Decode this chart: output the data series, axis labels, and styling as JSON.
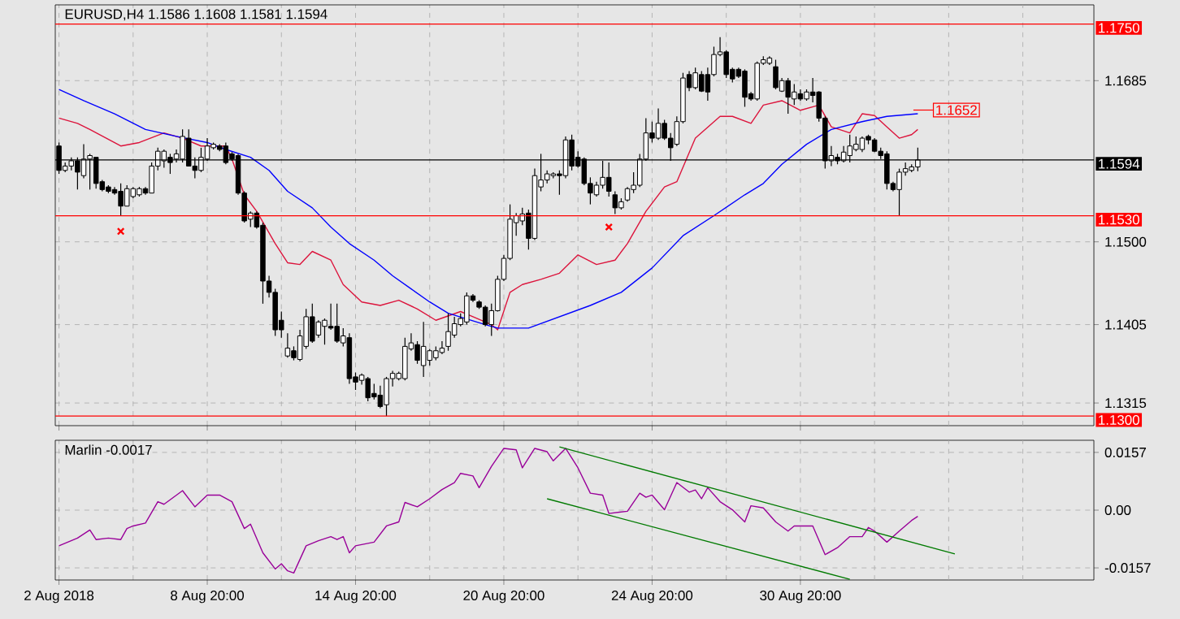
{
  "chart_data": [
    {
      "type": "candlestick",
      "title": "EURUSD,H4  1.1586 1.1608 1.1581 1.1594",
      "categories": [
        null,
        null,
        null,
        null,
        null,
        null,
        null,
        null,
        null,
        null,
        null,
        null,
        null,
        null,
        null,
        null,
        null,
        null,
        null,
        null,
        null,
        null,
        null,
        null,
        null,
        null,
        null,
        null,
        null,
        null,
        null,
        null,
        null,
        null,
        null,
        null,
        null,
        null,
        null,
        null,
        null,
        null,
        null,
        null,
        null,
        null,
        null,
        null,
        null,
        null,
        null,
        null,
        null,
        null,
        null,
        null,
        null,
        null,
        null,
        null,
        null,
        null,
        null,
        null,
        null,
        null,
        null,
        null,
        null,
        null,
        null,
        null,
        null,
        null,
        null,
        null,
        null,
        null,
        null,
        null,
        null,
        null,
        null,
        null,
        null,
        null,
        null,
        null,
        null,
        null,
        null,
        null,
        null,
        null,
        null,
        null,
        null,
        null,
        null,
        null,
        null,
        null,
        null,
        null,
        null,
        null,
        null,
        null,
        null,
        null,
        null,
        null,
        null,
        null,
        null,
        null,
        null,
        null,
        null,
        null,
        null,
        null,
        null,
        null,
        null,
        null,
        null,
        null,
        null,
        null,
        null,
        null,
        null,
        null,
        null,
        null,
        null,
        null,
        null,
        null,
        null,
        null,
        null,
        null,
        null,
        null,
        null,
        null,
        null,
        null,
        null,
        null,
        null,
        null,
        null,
        null,
        null,
        null,
        null,
        null,
        null,
        null,
        null,
        null,
        null,
        null,
        null,
        null
      ],
      "ohlc": [
        [
          1.161,
          1.1614,
          1.1578,
          1.1582
        ],
        [
          1.1582,
          1.1591,
          1.158,
          1.1587
        ],
        [
          1.1587,
          1.1597,
          1.1582,
          1.1593
        ],
        [
          1.1593,
          1.1597,
          1.156,
          1.158
        ],
        [
          1.1576,
          1.1612,
          1.1573,
          1.1595
        ],
        [
          1.1595,
          1.1601,
          1.156,
          1.1599
        ],
        [
          1.1597,
          1.1597,
          1.1561,
          1.1567
        ],
        [
          1.1569,
          1.1571,
          1.1558,
          1.156
        ],
        [
          1.1563,
          1.1565,
          1.1556,
          1.1558
        ],
        [
          1.156,
          1.1563,
          1.1554,
          1.1556
        ],
        [
          1.1558,
          1.1567,
          1.153,
          1.1541
        ],
        [
          1.1541,
          1.1565,
          1.1541,
          1.1561
        ],
        [
          1.1552,
          1.1563,
          1.155,
          1.1561
        ],
        [
          1.1554,
          1.1563,
          1.1552,
          1.1561
        ],
        [
          1.1561,
          1.1563,
          1.1554,
          1.1556
        ],
        [
          1.1556,
          1.1591,
          1.1556,
          1.1587
        ],
        [
          1.1587,
          1.1608,
          1.1582,
          1.1604
        ],
        [
          1.1593,
          1.1606,
          1.1585,
          1.1604
        ],
        [
          1.1597,
          1.1601,
          1.1578,
          1.1591
        ],
        [
          1.1595,
          1.1606,
          1.1591,
          1.1601
        ],
        [
          1.1595,
          1.1629,
          1.1591,
          1.1621
        ],
        [
          1.1619,
          1.1629,
          1.1587,
          1.1587
        ],
        [
          1.1587,
          1.1597,
          1.1573,
          1.1582
        ],
        [
          1.1582,
          1.1608,
          1.158,
          1.1597
        ],
        [
          1.1595,
          1.1619,
          1.1593,
          1.161
        ],
        [
          1.1608,
          1.1614,
          1.1606,
          1.1612
        ],
        [
          1.161,
          1.1612,
          1.1604,
          1.1606
        ],
        [
          1.161,
          1.1614,
          1.1589,
          1.1591
        ],
        [
          1.1601,
          1.1603,
          1.1593,
          1.1595
        ],
        [
          1.1599,
          1.1601,
          1.1554,
          1.1556
        ],
        [
          1.1556,
          1.1558,
          1.1522,
          1.1524
        ],
        [
          1.1526,
          1.1535,
          1.1517,
          1.1533
        ],
        [
          1.1533,
          1.1535,
          1.1515,
          1.1517
        ],
        [
          1.1519,
          1.1522,
          1.1429,
          1.1455
        ],
        [
          1.1455,
          1.1461,
          1.1436,
          1.1442
        ],
        [
          1.1442,
          1.1446,
          1.1392,
          1.1399
        ],
        [
          1.141,
          1.142,
          1.139,
          1.1399
        ],
        [
          1.1369,
          1.1395,
          1.1367,
          1.1378
        ],
        [
          1.1375,
          1.138,
          1.1364,
          1.1367
        ],
        [
          1.1365,
          1.1399,
          1.1363,
          1.1392
        ],
        [
          1.138,
          1.1423,
          1.1377,
          1.1414
        ],
        [
          1.1414,
          1.1429,
          1.1384,
          1.1386
        ],
        [
          1.1393,
          1.141,
          1.139,
          1.1408
        ],
        [
          1.1403,
          1.1412,
          1.1382,
          1.141
        ],
        [
          1.1403,
          1.1429,
          1.1399,
          1.1401
        ],
        [
          1.1403,
          1.1429,
          1.1384,
          1.1386
        ],
        [
          1.1384,
          1.1401,
          1.138,
          1.1392
        ],
        [
          1.139,
          1.1395,
          1.1337,
          1.1343
        ],
        [
          1.1345,
          1.135,
          1.133,
          1.1339
        ],
        [
          1.1341,
          1.1349,
          1.1336,
          1.1347
        ],
        [
          1.1343,
          1.1345,
          1.1317,
          1.1321
        ],
        [
          1.1326,
          1.1337,
          1.1319,
          1.1322
        ],
        [
          1.1324,
          1.1335,
          1.1309,
          1.1311
        ],
        [
          1.1313,
          1.1345,
          1.13,
          1.1343
        ],
        [
          1.1343,
          1.1352,
          1.1334,
          1.1349
        ],
        [
          1.1343,
          1.1351,
          1.1341,
          1.1349
        ],
        [
          1.1343,
          1.139,
          1.1341,
          1.138
        ],
        [
          1.1377,
          1.1395,
          1.1375,
          1.1384
        ],
        [
          1.1382,
          1.1386,
          1.136,
          1.1364
        ],
        [
          1.1358,
          1.1408,
          1.1345,
          1.138
        ],
        [
          1.1364,
          1.1377,
          1.1358,
          1.1375
        ],
        [
          1.1367,
          1.138,
          1.1364,
          1.1375
        ],
        [
          1.1373,
          1.1386,
          1.1371,
          1.1378
        ],
        [
          1.138,
          1.1418,
          1.1375,
          1.1397
        ],
        [
          1.1393,
          1.1414,
          1.139,
          1.1406
        ],
        [
          1.1405,
          1.1418,
          1.1403,
          1.1412
        ],
        [
          1.1408,
          1.1442,
          1.1405,
          1.1438
        ],
        [
          1.1438,
          1.144,
          1.1431,
          1.1433
        ],
        [
          1.1431,
          1.1433,
          1.1423,
          1.1425
        ],
        [
          1.1425,
          1.1427,
          1.1403,
          1.1405
        ],
        [
          1.1405,
          1.1429,
          1.1392,
          1.1421
        ],
        [
          1.1421,
          1.1461,
          1.142,
          1.1457
        ],
        [
          1.1457,
          1.1485,
          1.1455,
          1.1481
        ],
        [
          1.1481,
          1.1543,
          1.1479,
          1.1526
        ],
        [
          1.1522,
          1.1533,
          1.1507,
          1.153
        ],
        [
          1.1524,
          1.1539,
          1.1519,
          1.1532
        ],
        [
          1.1533,
          1.1537,
          1.1491,
          1.1504
        ],
        [
          1.1504,
          1.1584,
          1.1502,
          1.1576
        ],
        [
          1.1563,
          1.1601,
          1.1558,
          1.1571
        ],
        [
          1.1571,
          1.1582,
          1.1567,
          1.1578
        ],
        [
          1.1576,
          1.158,
          1.1573,
          1.1578
        ],
        [
          1.1578,
          1.1582,
          1.1554,
          1.1576
        ],
        [
          1.1576,
          1.1621,
          1.1573,
          1.1617
        ],
        [
          1.1617,
          1.1623,
          1.1582,
          1.1587
        ],
        [
          1.1597,
          1.1604,
          1.1585,
          1.1587
        ],
        [
          1.1595,
          1.1597,
          1.1565,
          1.1567
        ],
        [
          1.1567,
          1.1574,
          1.1543,
          1.1556
        ],
        [
          1.1554,
          1.1569,
          1.1552,
          1.1565
        ],
        [
          1.1565,
          1.1593,
          1.1561,
          1.1574
        ],
        [
          1.1574,
          1.1591,
          1.1552,
          1.1558
        ],
        [
          1.1554,
          1.1558,
          1.1532,
          1.1539
        ],
        [
          1.1539,
          1.155,
          1.1537,
          1.1546
        ],
        [
          1.1548,
          1.1563,
          1.1546,
          1.1561
        ],
        [
          1.156,
          1.158,
          1.1556,
          1.1565
        ],
        [
          1.1565,
          1.1601,
          1.1563,
          1.1595
        ],
        [
          1.1595,
          1.1642,
          1.1593,
          1.1625
        ],
        [
          1.1625,
          1.1638,
          1.1614,
          1.1619
        ],
        [
          1.1619,
          1.1653,
          1.1617,
          1.1636
        ],
        [
          1.1636,
          1.164,
          1.1617,
          1.1619
        ],
        [
          1.1619,
          1.1625,
          1.1593,
          1.1608
        ],
        [
          1.1612,
          1.1644,
          1.161,
          1.1638
        ],
        [
          1.1638,
          1.1694,
          1.1636,
          1.1688
        ],
        [
          1.1692,
          1.1696,
          1.1673,
          1.1677
        ],
        [
          1.1677,
          1.17,
          1.1675,
          1.1694
        ],
        [
          1.1692,
          1.1696,
          1.1672,
          1.1673
        ],
        [
          1.1692,
          1.17,
          1.1662,
          1.1672
        ],
        [
          1.1692,
          1.1724,
          1.169,
          1.1715
        ],
        [
          1.1715,
          1.1735,
          1.1713,
          1.1718
        ],
        [
          1.1718,
          1.172,
          1.1688,
          1.1692
        ],
        [
          1.1698,
          1.17,
          1.1683,
          1.1687
        ],
        [
          1.1698,
          1.17,
          1.1688,
          1.169
        ],
        [
          1.1696,
          1.1698,
          1.1655,
          1.1666
        ],
        [
          1.167,
          1.1672,
          1.1662,
          1.1664
        ],
        [
          1.1664,
          1.1707,
          1.1662,
          1.1705
        ],
        [
          1.1705,
          1.1713,
          1.1703,
          1.1709
        ],
        [
          1.1705,
          1.1713,
          1.1703,
          1.1711
        ],
        [
          1.1701,
          1.1709,
          1.1675,
          1.1677
        ],
        [
          1.1673,
          1.1688,
          1.1672,
          1.1685
        ],
        [
          1.1685,
          1.1688,
          1.1647,
          1.1666
        ],
        [
          1.1664,
          1.1681,
          1.1657,
          1.1672
        ],
        [
          1.167,
          1.1675,
          1.1662,
          1.1664
        ],
        [
          1.1664,
          1.1675,
          1.1662,
          1.1672
        ],
        [
          1.1672,
          1.1688,
          1.166,
          1.1668
        ],
        [
          1.1672,
          1.1673,
          1.1638,
          1.1642
        ],
        [
          1.1642,
          1.1644,
          1.1584,
          1.1593
        ],
        [
          1.1593,
          1.161,
          1.1587,
          1.1599
        ],
        [
          1.1597,
          1.1601,
          1.1589,
          1.1593
        ],
        [
          1.1593,
          1.161,
          1.1591,
          1.1603
        ],
        [
          1.1599,
          1.1623,
          1.1591,
          1.161
        ],
        [
          1.1606,
          1.1621,
          1.1604,
          1.1612
        ],
        [
          1.1606,
          1.1621,
          1.1603,
          1.1619
        ],
        [
          1.1621,
          1.1623,
          1.1612,
          1.1617
        ],
        [
          1.1617,
          1.1619,
          1.1603,
          1.1604
        ],
        [
          1.1604,
          1.1608,
          1.1595,
          1.1599
        ],
        [
          1.1601,
          1.1604,
          1.156,
          1.1567
        ],
        [
          1.1567,
          1.1569,
          1.1558,
          1.156
        ],
        [
          1.156,
          1.1584,
          1.153,
          1.158
        ],
        [
          1.158,
          1.1591,
          1.1576,
          1.1584
        ],
        [
          1.1582,
          1.1589,
          1.158,
          1.1586
        ],
        [
          1.1586,
          1.1608,
          1.1581,
          1.1594
        ],
        null,
        null,
        null,
        null,
        null,
        null,
        null,
        null,
        null,
        null,
        null,
        null,
        null,
        null,
        null,
        null,
        null,
        null,
        null,
        null,
        null,
        null,
        null,
        null,
        null,
        null,
        null,
        null
      ],
      "series": [
        {
          "type": "line",
          "color": "#dc143c",
          "values": [
            1.1642,
            null,
            null,
            1.1636,
            null,
            1.1629,
            null,
            null,
            null,
            null,
            1.161,
            null,
            null,
            1.1614,
            null,
            null,
            null,
            1.1625,
            null,
            null,
            1.1619,
            null,
            null,
            1.161,
            null,
            null,
            null,
            1.161,
            1.1595,
            null,
            1.1554,
            null,
            1.1535,
            null,
            null,
            1.1498,
            null,
            1.1476,
            null,
            1.1474,
            null,
            1.1489,
            null,
            null,
            1.1479,
            null,
            1.1451,
            null,
            null,
            1.1431,
            null,
            null,
            1.1427,
            null,
            null,
            1.1433,
            null,
            null,
            1.1423,
            null,
            null,
            1.141,
            null,
            null,
            null,
            1.142,
            null,
            1.1414,
            null,
            null,
            1.1405,
            1.1399,
            null,
            1.1442,
            null,
            1.1451,
            null,
            null,
            1.1457,
            null,
            null,
            1.1464,
            null,
            null,
            1.1485,
            null,
            null,
            1.1474,
            null,
            null,
            1.1479,
            null,
            1.1498,
            null,
            null,
            1.1535,
            null,
            null,
            1.1563,
            null,
            1.1569,
            null,
            null,
            1.1619,
            null,
            null,
            null,
            1.1644,
            null,
            1.1644,
            null,
            null,
            1.1636,
            null,
            1.1657,
            null,
            null,
            1.1662,
            null,
            null,
            1.1651,
            null,
            null,
            1.1657,
            null,
            1.1632,
            null,
            null,
            1.1625,
            null,
            1.1647,
            null,
            1.1645,
            null,
            1.1632,
            null,
            1.1619,
            null,
            1.1623,
            1.1629,
            null,
            null,
            null,
            null,
            null,
            null,
            null,
            null,
            null,
            null,
            null,
            null,
            null,
            null,
            null,
            null,
            null,
            null,
            null,
            null,
            null,
            null,
            null,
            null,
            null,
            null,
            null,
            null
          ]
        },
        {
          "type": "line",
          "color": "#0000ff",
          "values": [
            1.1675,
            null,
            null,
            null,
            1.1662,
            null,
            null,
            null,
            null,
            1.1647,
            null,
            null,
            null,
            null,
            1.1629,
            null,
            null,
            null,
            null,
            1.1621,
            null,
            null,
            null,
            null,
            1.1614,
            null,
            null,
            1.1606,
            null,
            null,
            null,
            1.1597,
            null,
            null,
            1.1582,
            null,
            null,
            1.1558,
            null,
            null,
            null,
            1.1539,
            null,
            null,
            1.1517,
            null,
            null,
            1.1498,
            null,
            null,
            null,
            1.1479,
            null,
            null,
            1.1461,
            null,
            null,
            1.1446,
            null,
            null,
            1.1431,
            null,
            null,
            1.1418,
            null,
            null,
            null,
            null,
            null,
            1.1405,
            null,
            1.1401,
            null,
            null,
            null,
            null,
            1.1401,
            null,
            null,
            null,
            null,
            1.1414,
            null,
            null,
            null,
            null,
            1.1427,
            null,
            null,
            null,
            null,
            1.1442,
            null,
            null,
            null,
            null,
            1.147,
            null,
            null,
            null,
            null,
            1.1507,
            null,
            null,
            null,
            null,
            1.153,
            null,
            null,
            null,
            null,
            1.1554,
            null,
            null,
            1.1567,
            null,
            null,
            1.1589,
            null,
            null,
            null,
            1.1612,
            null,
            null,
            null,
            1.1629,
            null,
            null,
            null,
            null,
            1.1638,
            null,
            null,
            null,
            1.1644,
            null,
            null,
            null,
            null,
            1.1647,
            null,
            null,
            null,
            null,
            null,
            null,
            null,
            null,
            null,
            null,
            null,
            null,
            null,
            null,
            null,
            null,
            null,
            null,
            null,
            null,
            null,
            null,
            null,
            null,
            null,
            null,
            null,
            null
          ]
        },
        {
          "type": "scatter",
          "color": "#ff0000",
          "marker": "cross",
          "values": [
            null,
            null,
            null,
            null,
            null,
            null,
            null,
            null,
            null,
            null,
            1.1512,
            null,
            null,
            null,
            null,
            null,
            null,
            null,
            null,
            null,
            null,
            null,
            null,
            null,
            null,
            null,
            null,
            null,
            null,
            null,
            null,
            null,
            null,
            null,
            null,
            null,
            null,
            null,
            null,
            null,
            null,
            null,
            null,
            null,
            null,
            null,
            null,
            null,
            null,
            null,
            null,
            null,
            null,
            null,
            null,
            null,
            null,
            null,
            null,
            null,
            null,
            null,
            null,
            null,
            null,
            null,
            null,
            null,
            null,
            null,
            null,
            null,
            null,
            null,
            null,
            null,
            null,
            null,
            null,
            null,
            null,
            null,
            null,
            null,
            null,
            null,
            null,
            null,
            null,
            1.1517,
            null,
            null,
            null,
            null,
            null,
            null,
            null,
            null,
            null,
            null,
            null,
            null,
            null,
            null,
            null,
            null,
            null,
            null,
            null,
            null,
            null,
            null,
            null,
            null,
            null,
            null,
            null,
            null,
            null,
            null,
            null,
            null,
            null,
            null,
            null,
            null,
            null,
            null,
            null,
            null,
            null,
            null,
            null,
            null,
            null,
            null,
            null,
            null,
            null,
            null,
            null,
            null,
            null,
            null,
            null,
            null,
            null,
            null,
            null,
            null,
            null,
            null,
            null,
            null,
            null,
            null,
            null,
            null,
            null,
            null,
            null,
            null,
            null,
            null,
            null,
            null,
            null,
            null
          ]
        }
      ],
      "ylim": [
        1.1289,
        1.1772
      ],
      "yticks": [
        1.1685,
        {
          "value": 1.15,
          "label": "1.1500"
        },
        1.1405,
        1.1315
      ],
      "ref_lines": [
        {
          "axis": "y",
          "value": 1.175,
          "label": "1.1750",
          "color": "#ff0000"
        },
        {
          "axis": "y",
          "value": 1.1594,
          "label": "1.1594",
          "color": "#000000"
        },
        {
          "axis": "y",
          "value": 1.153,
          "label": "1.1530",
          "color": "#ff0000"
        },
        {
          "axis": "y",
          "value": 1.13,
          "label": "1.1300",
          "color": "#ff0000"
        }
      ],
      "annotations": [
        "1.1652"
      ],
      "grid": true,
      "tick_labels": "y"
    },
    {
      "type": "line",
      "title": "Marlin -0.0017",
      "categories": [
        "2 Aug 2018",
        null,
        null,
        null,
        null,
        null,
        null,
        null,
        null,
        null,
        null,
        null,
        null,
        null,
        null,
        null,
        null,
        null,
        null,
        null,
        null,
        null,
        null,
        null,
        "8 Aug 20:00",
        null,
        null,
        null,
        null,
        null,
        null,
        null,
        null,
        null,
        null,
        null,
        null,
        null,
        null,
        null,
        null,
        null,
        null,
        null,
        null,
        null,
        null,
        null,
        "14 Aug 20:00",
        null,
        null,
        null,
        null,
        null,
        null,
        null,
        null,
        null,
        null,
        null,
        null,
        null,
        null,
        null,
        null,
        null,
        null,
        null,
        null,
        null,
        null,
        null,
        "20 Aug 20:00",
        null,
        null,
        null,
        null,
        null,
        null,
        null,
        null,
        null,
        null,
        null,
        null,
        null,
        null,
        null,
        null,
        null,
        null,
        null,
        null,
        null,
        null,
        null,
        "24 Aug 20:00",
        null,
        null,
        null,
        null,
        null,
        null,
        null,
        null,
        null,
        null,
        null,
        null,
        null,
        null,
        null,
        null,
        null,
        null,
        null,
        null,
        null,
        null,
        null,
        "30 Aug 20:00",
        null,
        null,
        null,
        null,
        null,
        null,
        null,
        null,
        null,
        null,
        null,
        null,
        null,
        null,
        null,
        null,
        null,
        null,
        null,
        null,
        null,
        null,
        null,
        null,
        null,
        null,
        null,
        null,
        null,
        null,
        null,
        null,
        null,
        null,
        null,
        null,
        null,
        null,
        null,
        null,
        null,
        null,
        null,
        null,
        null,
        null,
        null
      ],
      "series": [
        {
          "color": "#990099",
          "values": [
            -0.0097,
            null,
            null,
            -0.0076,
            null,
            -0.0054,
            -0.008,
            null,
            -0.0076,
            null,
            -0.008,
            -0.005,
            -0.0043,
            null,
            -0.0035,
            null,
            0.0023,
            0.0016,
            null,
            null,
            0.0053,
            null,
            0.0009,
            null,
            0.0041,
            null,
            0.0041,
            null,
            0.0023,
            null,
            -0.005,
            -0.0038,
            null,
            -0.0116,
            null,
            -0.016,
            -0.0146,
            -0.0165,
            -0.0171,
            null,
            -0.0097,
            null,
            -0.0083,
            null,
            -0.0072,
            -0.008,
            -0.0072,
            -0.0116,
            -0.0097,
            null,
            null,
            -0.0087,
            null,
            -0.0043,
            null,
            -0.0032,
            0.0021,
            null,
            0.0009,
            null,
            0.0031,
            null,
            0.0056,
            null,
            0.0075,
            0.01,
            null,
            0.0093,
            0.0061,
            null,
            0.0119,
            null,
            0.0168,
            null,
            0.0164,
            0.0115,
            null,
            0.0168,
            null,
            0.0159,
            0.0134,
            null,
            0.0168,
            null,
            0.0115,
            null,
            0.0046,
            null,
            0.0041,
            -0.0009,
            null,
            null,
            -0.0003,
            null,
            0.0046,
            0.0035,
            0.0041,
            null,
            0.0001,
            null,
            0.0075,
            null,
            0.0049,
            0.0055,
            0.0031,
            0.0061,
            null,
            0.0023,
            null,
            0.0001,
            null,
            -0.0032,
            0.0012,
            null,
            0.0006,
            null,
            -0.0032,
            null,
            -0.0057,
            -0.0043,
            null,
            null,
            -0.0043,
            null,
            -0.0121,
            null,
            -0.0102,
            null,
            -0.0072,
            null,
            -0.0072,
            -0.0047,
            -0.0057,
            null,
            -0.0087,
            null,
            -0.0057,
            null,
            -0.0028,
            -0.0017,
            null,
            null,
            null,
            null,
            null,
            null,
            null,
            null,
            null,
            null,
            null,
            null,
            null,
            null,
            null,
            null,
            null,
            null,
            null,
            null,
            null,
            null,
            null,
            null,
            null,
            null,
            null,
            null
          ]
        },
        {
          "color": "#007a00",
          "values": [
            null,
            null,
            null,
            null,
            null,
            null,
            null,
            null,
            null,
            null,
            null,
            null,
            null,
            null,
            null,
            null,
            null,
            null,
            null,
            null,
            null,
            null,
            null,
            null,
            null,
            null,
            null,
            null,
            null,
            null,
            null,
            null,
            null,
            null,
            null,
            null,
            null,
            null,
            null,
            null,
            null,
            null,
            null,
            null,
            null,
            null,
            null,
            null,
            null,
            null,
            null,
            null,
            null,
            null,
            null,
            null,
            null,
            null,
            null,
            null,
            null,
            null,
            null,
            null,
            null,
            null,
            null,
            null,
            null,
            null,
            null,
            null,
            null,
            null,
            null,
            null,
            null,
            null,
            null,
            null,
            null,
            0.0172,
            null,
            null,
            null,
            null,
            null,
            null,
            null,
            null,
            null,
            null,
            null,
            null,
            null,
            null,
            null,
            null,
            null,
            null,
            null,
            null,
            null,
            null,
            null,
            null,
            null,
            null,
            null,
            null,
            null,
            null,
            null,
            null,
            null,
            null,
            null,
            null,
            null,
            null,
            null,
            null,
            null,
            null,
            null,
            null,
            null,
            null,
            null,
            null,
            null,
            null,
            null,
            null,
            null,
            null,
            null,
            null,
            null,
            null,
            null,
            null,
            null,
            null,
            null,
            -0.0119,
            null,
            null,
            null,
            null,
            null,
            null,
            null,
            null,
            null,
            null,
            null,
            null,
            null,
            null,
            null,
            null,
            null,
            null,
            null,
            null,
            null,
            null
          ]
        },
        {
          "color": "#007a00",
          "values": [
            null,
            null,
            null,
            null,
            null,
            null,
            null,
            null,
            null,
            null,
            null,
            null,
            null,
            null,
            null,
            null,
            null,
            null,
            null,
            null,
            null,
            null,
            null,
            null,
            null,
            null,
            null,
            null,
            null,
            null,
            null,
            null,
            null,
            null,
            null,
            null,
            null,
            null,
            null,
            null,
            null,
            null,
            null,
            null,
            null,
            null,
            null,
            null,
            null,
            null,
            null,
            null,
            null,
            null,
            null,
            null,
            null,
            null,
            null,
            null,
            null,
            null,
            null,
            null,
            null,
            null,
            null,
            null,
            null,
            null,
            null,
            null,
            null,
            null,
            null,
            null,
            null,
            null,
            null,
            0.0031,
            null,
            null,
            null,
            null,
            null,
            null,
            null,
            null,
            null,
            null,
            null,
            null,
            null,
            null,
            null,
            null,
            null,
            null,
            null,
            null,
            null,
            null,
            null,
            null,
            null,
            null,
            null,
            null,
            null,
            null,
            null,
            null,
            null,
            null,
            null,
            null,
            null,
            null,
            null,
            null,
            null,
            null,
            null,
            null,
            null,
            null,
            null,
            null,
            -0.0188,
            null,
            null,
            null,
            null,
            null,
            null,
            null,
            null,
            null,
            null,
            null,
            null,
            null,
            null,
            null,
            null,
            null,
            null,
            null,
            null,
            null,
            null,
            null,
            null,
            null,
            null,
            null,
            null,
            null,
            null,
            null,
            null,
            null,
            null,
            null,
            null,
            null,
            null,
            null
          ]
        }
      ],
      "ylim": [
        -0.019,
        0.019
      ],
      "yticks": [
        0.0157,
        {
          "value": 0,
          "label": "0.00"
        },
        -0.0157
      ],
      "grid": true
    }
  ]
}
